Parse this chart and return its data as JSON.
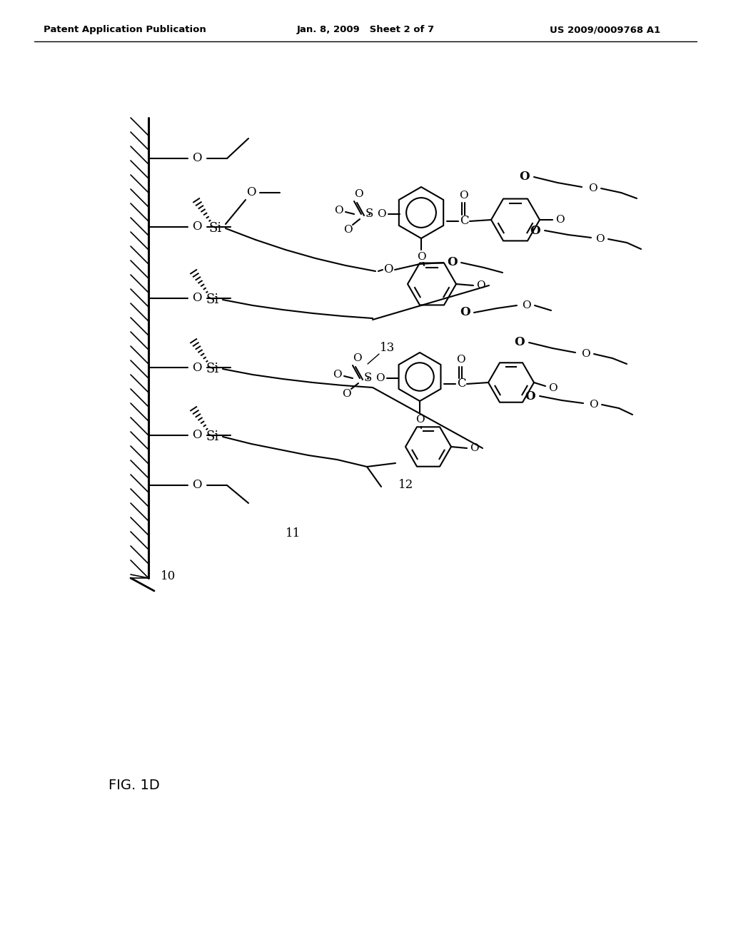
{
  "header_left": "Patent Application Publication",
  "header_mid": "Jan. 8, 2009   Sheet 2 of 7",
  "header_right": "US 2009/0009768 A1",
  "fig_label": "FIG. 1D",
  "background": "#ffffff"
}
